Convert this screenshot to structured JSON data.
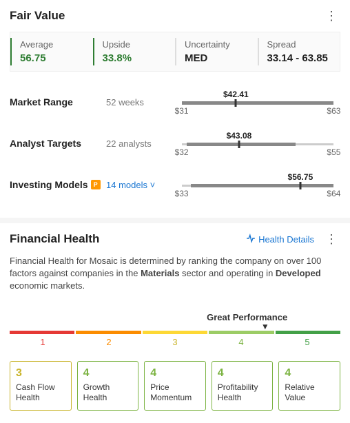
{
  "fairValue": {
    "title": "Fair Value",
    "cells": [
      {
        "label": "Average",
        "value": "56.75",
        "green": true,
        "highlight": true
      },
      {
        "label": "Upside",
        "value": "33.8%",
        "green": true,
        "highlight": true
      },
      {
        "label": "Uncertainty",
        "value": "MED",
        "green": false,
        "highlight": false
      },
      {
        "label": "Spread",
        "value": "33.14 - 63.85",
        "green": false,
        "highlight": false
      }
    ],
    "ranges": [
      {
        "label": "Market Range",
        "sub": "52 weeks",
        "subLink": false,
        "badge": false,
        "lo": "$31",
        "hi": "$63",
        "val": "$42.41",
        "loN": 31,
        "hiN": 63,
        "valN": 42.41,
        "fillLoN": 31,
        "fillHiN": 63
      },
      {
        "label": "Analyst Targets",
        "sub": "22 analysts",
        "subLink": false,
        "badge": false,
        "lo": "$32",
        "hi": "$55",
        "val": "$43.08",
        "loN": 31,
        "hiN": 63,
        "valN": 43.08,
        "fillLoN": 32,
        "fillHiN": 55
      },
      {
        "label": "Investing Models",
        "sub": "14 models ˅",
        "subLink": true,
        "badge": true,
        "lo": "$33",
        "hi": "$64",
        "val": "$56.75",
        "loN": 31,
        "hiN": 64,
        "valN": 56.75,
        "fillLoN": 33,
        "fillHiN": 64
      }
    ]
  },
  "finHealth": {
    "title": "Financial Health",
    "detailsLink": "Health Details",
    "desc": {
      "pre": "Financial Health for Mosaic is determined by ranking the company on over 100 factors against companies in the ",
      "b1": "Materials",
      "mid": " sector and operating in ",
      "b2": "Developed",
      "post": " economic markets."
    },
    "perf": {
      "label": "Great Performance",
      "segments": [
        {
          "num": "1",
          "color": "#e53935",
          "numColor": "#e53935"
        },
        {
          "num": "2",
          "color": "#fb8c00",
          "numColor": "#fb8c00"
        },
        {
          "num": "3",
          "color": "#fdd835",
          "numColor": "#c9b42a"
        },
        {
          "num": "4",
          "color": "#9ccc65",
          "numColor": "#7cb342"
        },
        {
          "num": "5",
          "color": "#43a047",
          "numColor": "#43a047"
        }
      ],
      "pointerIndex": 3
    },
    "boxes": [
      {
        "score": "3",
        "name": "Cash Flow Health",
        "color": "#c9b42a"
      },
      {
        "score": "4",
        "name": "Growth Health",
        "color": "#7cb342"
      },
      {
        "score": "4",
        "name": "Price Momentum",
        "color": "#7cb342"
      },
      {
        "score": "4",
        "name": "Profitability Health",
        "color": "#7cb342"
      },
      {
        "score": "4",
        "name": "Relative Value",
        "color": "#7cb342"
      }
    ]
  }
}
